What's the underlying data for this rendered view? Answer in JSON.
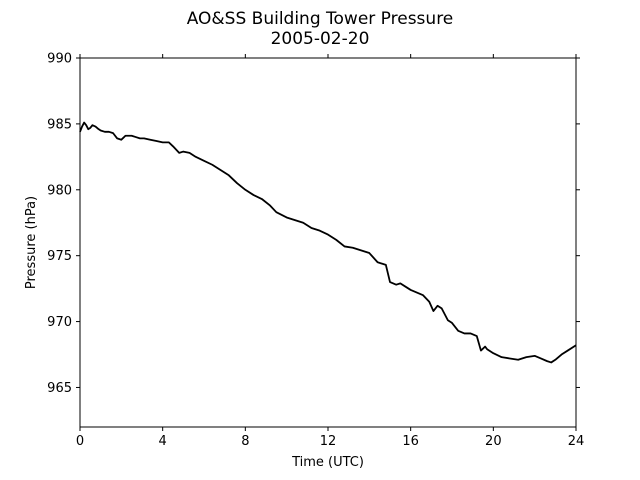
{
  "chart_data": {
    "type": "line",
    "title": "AO&SS Building Tower Pressure",
    "subtitle": "2005-02-20",
    "xlabel": "Time (UTC)",
    "ylabel": "Pressure (hPa)",
    "xlim": [
      0,
      24
    ],
    "ylim": [
      962,
      990
    ],
    "xticks": [
      0,
      4,
      8,
      12,
      16,
      20,
      24
    ],
    "yticks": [
      965,
      970,
      975,
      980,
      985,
      990
    ],
    "grid": false,
    "line_color": "#000000",
    "series": [
      {
        "x": [
          0,
          0.1,
          0.2,
          0.3,
          0.4,
          0.5,
          0.6,
          0.75,
          0.9,
          1.0,
          1.2,
          1.4,
          1.6,
          1.8,
          2.0,
          2.2,
          2.5,
          2.7,
          2.9,
          3.1,
          3.4,
          3.7,
          4.0,
          4.3,
          4.5,
          4.8,
          5.0,
          5.3,
          5.6,
          6.0,
          6.4,
          6.8,
          7.2,
          7.6,
          8.0,
          8.4,
          8.8,
          9.2,
          9.5,
          10.0,
          10.4,
          10.8,
          11.2,
          11.6,
          12.0,
          12.4,
          12.8,
          13.2,
          13.6,
          14.0,
          14.4,
          14.8,
          15.0,
          15.3,
          15.5,
          15.8,
          16.0,
          16.3,
          16.6,
          16.9,
          17.1,
          17.3,
          17.5,
          17.8,
          18.0,
          18.3,
          18.6,
          18.9,
          19.2,
          19.4,
          19.6,
          19.7,
          20.0,
          20.4,
          20.8,
          21.2,
          21.6,
          22.0,
          22.3,
          22.6,
          22.8,
          23.0,
          23.3,
          23.6,
          24.0
        ],
        "values": [
          984.4,
          984.8,
          985.1,
          984.9,
          984.6,
          984.7,
          984.9,
          984.8,
          984.6,
          984.5,
          984.4,
          984.4,
          984.3,
          983.9,
          983.8,
          984.1,
          984.1,
          984.0,
          983.9,
          983.9,
          983.8,
          983.7,
          983.6,
          983.6,
          983.3,
          982.8,
          982.9,
          982.8,
          982.5,
          982.2,
          981.9,
          981.5,
          981.1,
          980.5,
          980.0,
          979.6,
          979.3,
          978.8,
          978.3,
          977.9,
          977.7,
          977.5,
          977.1,
          976.9,
          976.6,
          976.2,
          975.7,
          975.6,
          975.4,
          975.2,
          974.5,
          974.3,
          973.0,
          972.8,
          972.9,
          972.6,
          972.4,
          972.2,
          972.0,
          971.5,
          970.8,
          971.2,
          971.0,
          970.1,
          969.9,
          969.3,
          969.1,
          969.1,
          968.9,
          967.8,
          968.1,
          967.9,
          967.6,
          967.3,
          967.2,
          967.1,
          967.3,
          967.4,
          967.2,
          967.0,
          966.9,
          967.1,
          967.5,
          967.8,
          968.2
        ]
      }
    ]
  }
}
